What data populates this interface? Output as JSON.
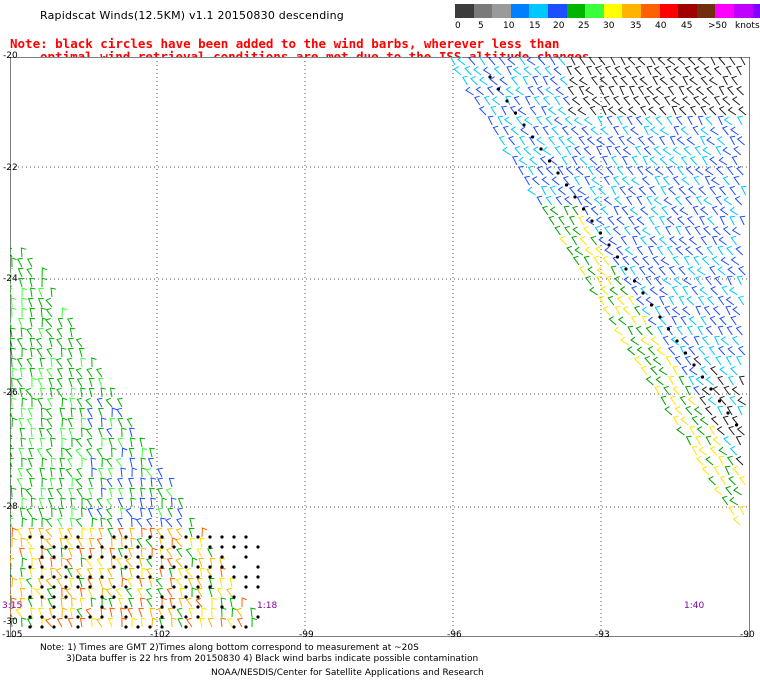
{
  "header": {
    "title": "Rapidscat Winds(12.5KM) v1.1 20150830 descending",
    "note_line1": "Note: black circles have been added to the wind barbs, wherever less than",
    "note_line2": "optimal wind retrieval conditions are met due to the ISS altitude changes."
  },
  "colorbar": {
    "colors": [
      "#3c3c3c",
      "#7a7a7a",
      "#9a9a9a",
      "#0080ff",
      "#00c8ff",
      "#1e4fff",
      "#00b400",
      "#3cff3c",
      "#ffff00",
      "#ffb400",
      "#ff6000",
      "#ff0000",
      "#a00000",
      "#703010",
      "#ff00ff",
      "#c000ff",
      "#8000ff",
      "#400080"
    ],
    "labels": [
      "0",
      "5",
      "10",
      "15",
      "20",
      "25",
      "30",
      "35",
      "40",
      "45",
      ">50"
    ],
    "unit": "knots"
  },
  "map": {
    "lat_labels": [
      "-20",
      "-22",
      "-24",
      "-26",
      "-28",
      "-30"
    ],
    "lon_labels": [
      "-105",
      "-102",
      "-99",
      "-96",
      "-93",
      "-90"
    ],
    "time_labels": [
      "3:15",
      "1:18",
      "1:40"
    ]
  },
  "footer": {
    "line1": "Note: 1) Times are GMT 2)Times along bottom correspond to measurement at ~20S",
    "line2": "3)Data buffer is 22 hrs from 20150830 4) Black wind barbs indicate possible contamination",
    "line3": "NOAA/NESDIS/Center for Satellite Applications and Research"
  }
}
